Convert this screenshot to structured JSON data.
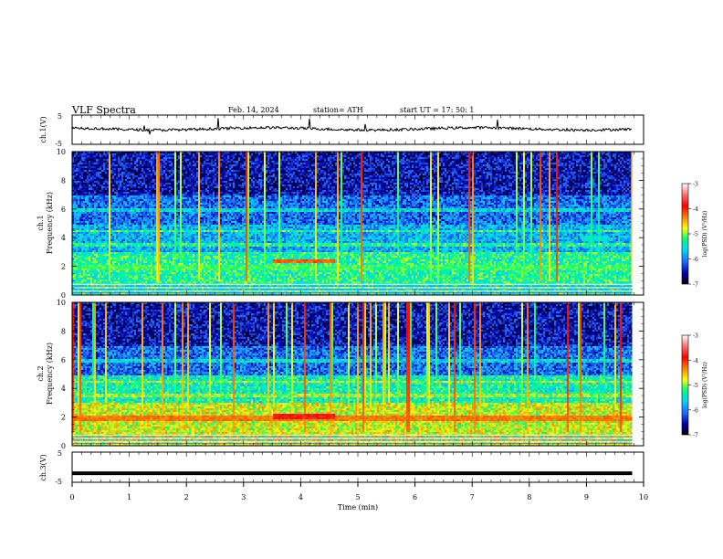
{
  "header": {
    "title": "VLF  Spectra",
    "date": "Feb. 14, 2024",
    "station": "station= ATH",
    "start": "start  UT  =    17: 50: 1"
  },
  "chart_data": [
    {
      "type": "line",
      "ylabel": "ch.1(V)",
      "ylim": [
        -5,
        5
      ],
      "yticks": [
        "5",
        "-5"
      ],
      "baseline_v": 0.3,
      "note_shape": "noisy trace near zero with spikes"
    },
    {
      "type": "heatmap",
      "ylabel": "ch.1\nFrequency (kHz)",
      "ylabel_line1": "ch.1",
      "ylabel_line2": "Frequency (kHz)",
      "ylim": [
        0,
        10
      ],
      "yticks": [
        "0",
        "2",
        "4",
        "6",
        "8",
        "10"
      ],
      "colorbar": {
        "label": "log(PSD) (V²/Hz)",
        "range": [
          -7,
          -3
        ],
        "ticks": [
          "-3",
          "-4",
          "-5",
          "-6",
          "-7"
        ],
        "colors": [
          "#000000",
          "#0000b0",
          "#1e6bff",
          "#00d4ff",
          "#00ff80",
          "#ffff00",
          "#ff8000",
          "#ff0000",
          "#ff7070",
          "#ffffff"
        ]
      },
      "bands": [
        {
          "freq_khz": 1.0,
          "level": -5.6
        },
        {
          "freq_khz": 2.0,
          "level": -5.2
        },
        {
          "freq_khz": 2.4,
          "level": -4.2,
          "t_start_min": 3.5,
          "t_end_min": 4.6
        },
        {
          "freq_khz": 4.0,
          "level": -5.5,
          "t_start_min": 8.9,
          "t_end_min": 9.3
        }
      ]
    },
    {
      "type": "heatmap",
      "ylabel": "ch.2\nFrequency (kHz)",
      "ylabel_line1": "ch.2",
      "ylabel_line2": "Frequency (kHz)",
      "ylim": [
        0,
        10
      ],
      "yticks": [
        "0",
        "2",
        "4",
        "6",
        "8",
        "10"
      ],
      "colorbar": {
        "label": "log(PSD) (V²/Hz)",
        "range": [
          -7,
          -3
        ],
        "ticks": [
          "-3",
          "-4",
          "-5",
          "-6",
          "-7"
        ],
        "colors": [
          "#000000",
          "#0000b0",
          "#1e6bff",
          "#00d4ff",
          "#00ff80",
          "#ffff00",
          "#ff8000",
          "#ff0000",
          "#ff7070",
          "#ffffff"
        ]
      },
      "bands": [
        {
          "freq_khz": 2.0,
          "level": -4.3
        },
        {
          "freq_khz": 2.1,
          "level": -3.8,
          "t_start_min": 3.5,
          "t_end_min": 4.6
        },
        {
          "freq_khz": 3.8,
          "level": -5.5,
          "t_start_min": 8.9,
          "t_end_min": 9.3
        }
      ]
    },
    {
      "type": "line",
      "ylabel": "ch.3(V)",
      "ylim": [
        -5,
        5
      ],
      "yticks": [
        "5",
        "-5"
      ],
      "baseline_v": -2.0,
      "note_shape": "thick flat trace"
    }
  ],
  "xaxis": {
    "label": "Time  (min)",
    "range": [
      0,
      10
    ],
    "data_end_min": 9.8,
    "ticks": [
      "0",
      "1",
      "2",
      "3",
      "4",
      "5",
      "6",
      "7",
      "8",
      "9",
      "10"
    ]
  }
}
